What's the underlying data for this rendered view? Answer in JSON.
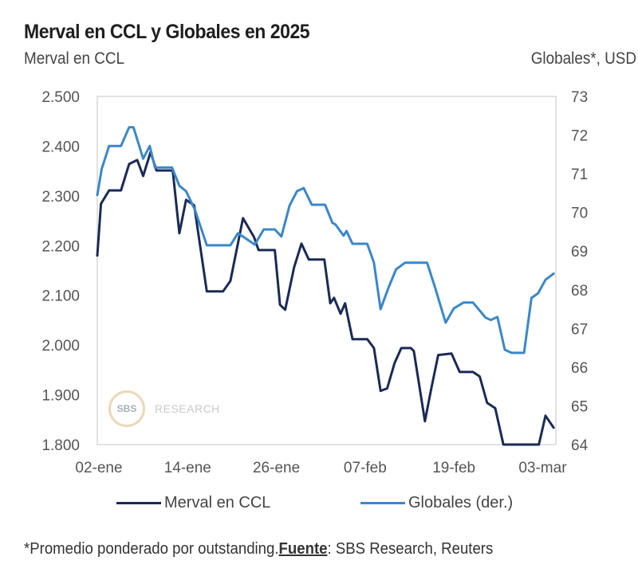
{
  "header": {
    "title": "Merval en CCL y Globales en 2025",
    "left_axis_title": "Merval en CCL",
    "right_axis_title": "Globales*, USD"
  },
  "watermark": {
    "logo": "SBS",
    "text": "RESEARCH"
  },
  "legend": [
    {
      "label": "Merval en CCL",
      "color": "#1b2a55"
    },
    {
      "label": "Globales (der.)",
      "color": "#3b87c8"
    }
  ],
  "footnote": {
    "prefix": "*Promedio ponderado por outstanding.",
    "source_label": "Fuente",
    "source_text": ": SBS Research, Reuters"
  },
  "chart_data": {
    "type": "line",
    "title": "Merval en CCL y Globales en 2025",
    "xlabel": "",
    "x_unit": "days since 02-ene-2025",
    "x_range": [
      0,
      62
    ],
    "x_ticks": [
      {
        "day": 0,
        "label": "02-ene"
      },
      {
        "day": 12,
        "label": "14-ene"
      },
      {
        "day": 24,
        "label": "26-ene"
      },
      {
        "day": 36,
        "label": "07-feb"
      },
      {
        "day": 48,
        "label": "19-feb"
      },
      {
        "day": 60,
        "label": "03-mar"
      }
    ],
    "y_left": {
      "label": "Merval en CCL",
      "range": [
        1800,
        2500
      ],
      "ticks": [
        1800,
        1900,
        2000,
        2100,
        2200,
        2300,
        2400,
        2500
      ],
      "tick_labels": [
        "1.800",
        "1.900",
        "2.000",
        "2.100",
        "2.200",
        "2.300",
        "2.400",
        "2.500"
      ]
    },
    "y_right": {
      "label": "Globales*, USD",
      "range": [
        64,
        73
      ],
      "ticks": [
        64,
        65,
        66,
        67,
        68,
        69,
        70,
        71,
        72,
        73
      ],
      "tick_labels": [
        "64",
        "65",
        "66",
        "67",
        "68",
        "69",
        "70",
        "71",
        "72",
        "73"
      ]
    },
    "grid": false,
    "legend_position": "bottom",
    "series": [
      {
        "name": "Merval en CCL",
        "axis": "left",
        "color": "#1b2a55",
        "points": [
          [
            0,
            2180
          ],
          [
            0.5,
            2284
          ],
          [
            1.6,
            2311
          ],
          [
            3.2,
            2311
          ],
          [
            4.3,
            2364
          ],
          [
            5.4,
            2372
          ],
          [
            6.2,
            2340
          ],
          [
            7.2,
            2388
          ],
          [
            8.0,
            2351
          ],
          [
            10.2,
            2351
          ],
          [
            11.1,
            2225
          ],
          [
            12.0,
            2292
          ],
          [
            13.1,
            2281
          ],
          [
            14.8,
            2108
          ],
          [
            17.0,
            2108
          ],
          [
            18.0,
            2129
          ],
          [
            19.7,
            2255
          ],
          [
            21.2,
            2217
          ],
          [
            21.8,
            2191
          ],
          [
            24.0,
            2191
          ],
          [
            24.7,
            2081
          ],
          [
            25.4,
            2071
          ],
          [
            26.6,
            2156
          ],
          [
            27.6,
            2204
          ],
          [
            28.6,
            2172
          ],
          [
            30.7,
            2172
          ],
          [
            31.5,
            2084
          ],
          [
            32.0,
            2095
          ],
          [
            32.9,
            2063
          ],
          [
            33.5,
            2084
          ],
          [
            34.5,
            2012
          ],
          [
            36.5,
            2012
          ],
          [
            37.4,
            1994
          ],
          [
            38.3,
            1908
          ],
          [
            39.2,
            1913
          ],
          [
            40.2,
            1964
          ],
          [
            41.1,
            1994
          ],
          [
            42.4,
            1994
          ],
          [
            42.8,
            1988
          ],
          [
            44.3,
            1847
          ],
          [
            45.2,
            1916
          ],
          [
            46.1,
            1980
          ],
          [
            47.9,
            1983
          ],
          [
            49.0,
            1946
          ],
          [
            50.8,
            1946
          ],
          [
            51.7,
            1937
          ],
          [
            52.7,
            1884
          ],
          [
            53.8,
            1873
          ],
          [
            54.9,
            1800
          ],
          [
            59.7,
            1800
          ],
          [
            60.6,
            1858
          ],
          [
            61.7,
            1834
          ]
        ]
      },
      {
        "name": "Globales (der.)",
        "axis": "right",
        "color": "#3b87c8",
        "points": [
          [
            0,
            70.45
          ],
          [
            0.6,
            71.13
          ],
          [
            1.6,
            71.72
          ],
          [
            3.2,
            71.72
          ],
          [
            4.3,
            72.2
          ],
          [
            4.9,
            72.2
          ],
          [
            6.2,
            71.39
          ],
          [
            7.1,
            71.72
          ],
          [
            7.8,
            71.16
          ],
          [
            10.1,
            71.16
          ],
          [
            11.1,
            70.69
          ],
          [
            12.0,
            70.55
          ],
          [
            13.2,
            70.07
          ],
          [
            14.8,
            69.15
          ],
          [
            17.0,
            69.15
          ],
          [
            18.0,
            69.15
          ],
          [
            19.0,
            69.46
          ],
          [
            19.9,
            69.35
          ],
          [
            21.3,
            69.17
          ],
          [
            22.5,
            69.56
          ],
          [
            24.0,
            69.56
          ],
          [
            24.9,
            69.38
          ],
          [
            26.0,
            70.18
          ],
          [
            27.0,
            70.55
          ],
          [
            27.9,
            70.63
          ],
          [
            29.0,
            70.2
          ],
          [
            30.8,
            70.2
          ],
          [
            31.8,
            69.73
          ],
          [
            32.2,
            69.69
          ],
          [
            33.3,
            69.4
          ],
          [
            33.7,
            69.52
          ],
          [
            34.5,
            69.19
          ],
          [
            36.5,
            69.19
          ],
          [
            37.4,
            68.7
          ],
          [
            38.3,
            67.5
          ],
          [
            39.4,
            68.07
          ],
          [
            40.4,
            68.53
          ],
          [
            41.6,
            68.7
          ],
          [
            44.6,
            68.7
          ],
          [
            45.7,
            68.04
          ],
          [
            47.1,
            67.15
          ],
          [
            48.2,
            67.52
          ],
          [
            49.5,
            67.67
          ],
          [
            50.8,
            67.67
          ],
          [
            52.5,
            67.28
          ],
          [
            53.2,
            67.22
          ],
          [
            54.1,
            67.3
          ],
          [
            55.1,
            66.45
          ],
          [
            56.0,
            66.37
          ],
          [
            57.7,
            66.37
          ],
          [
            58.7,
            67.79
          ],
          [
            59.6,
            67.91
          ],
          [
            60.6,
            68.26
          ],
          [
            61.7,
            68.42
          ]
        ]
      }
    ]
  }
}
